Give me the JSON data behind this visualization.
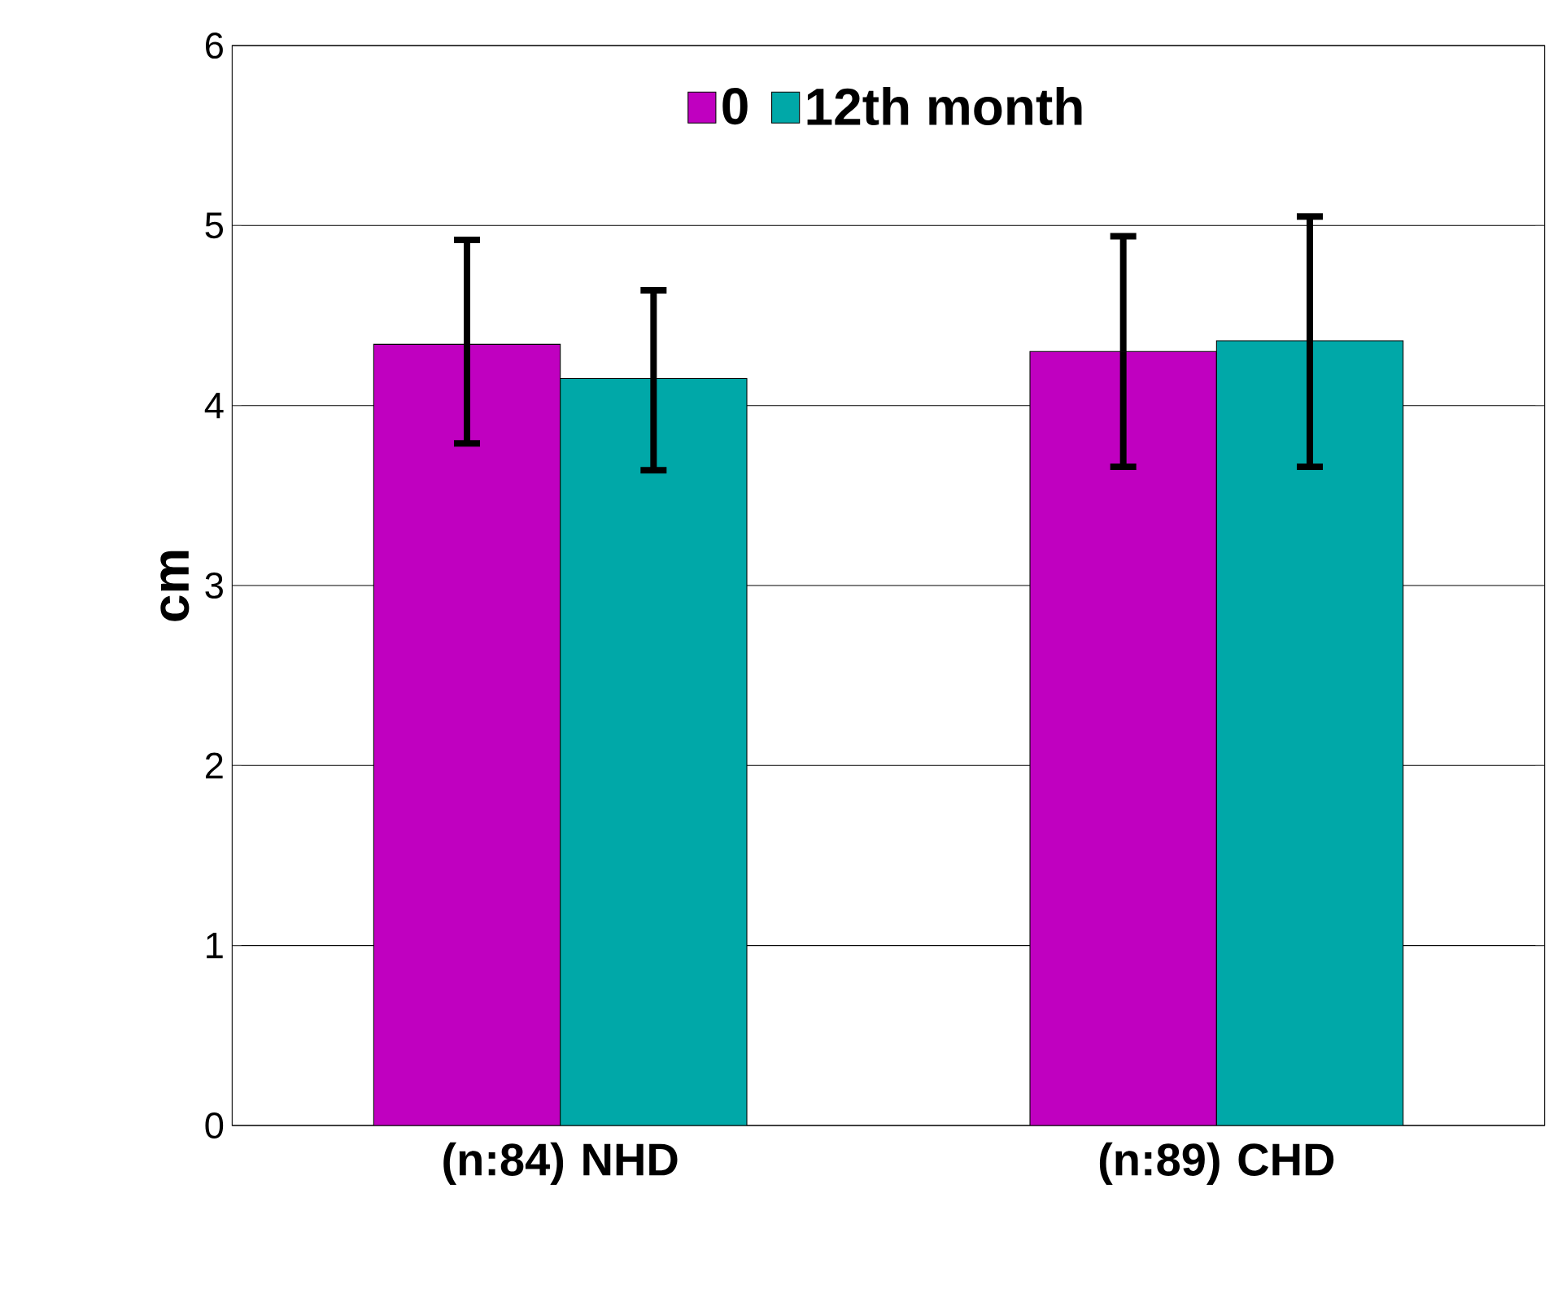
{
  "chart_data": {
    "type": "bar",
    "ylabel": "cm",
    "categories": [
      "(n:84) NHD",
      "(n:89) CHD"
    ],
    "series": [
      {
        "name": "0",
        "color": "#c000c0",
        "values": [
          4.34,
          4.3
        ],
        "errors": [
          [
            3.79,
            4.92
          ],
          [
            3.66,
            4.94
          ]
        ]
      },
      {
        "name": "12th month",
        "color": "#00a8a8",
        "values": [
          4.15,
          4.36
        ],
        "errors": [
          [
            3.64,
            4.64
          ],
          [
            3.66,
            5.05
          ]
        ]
      }
    ],
    "ylim": [
      0,
      6
    ],
    "yticks": [
      0,
      1,
      2,
      3,
      4,
      5,
      6
    ],
    "grid": "y",
    "legend": "top"
  }
}
